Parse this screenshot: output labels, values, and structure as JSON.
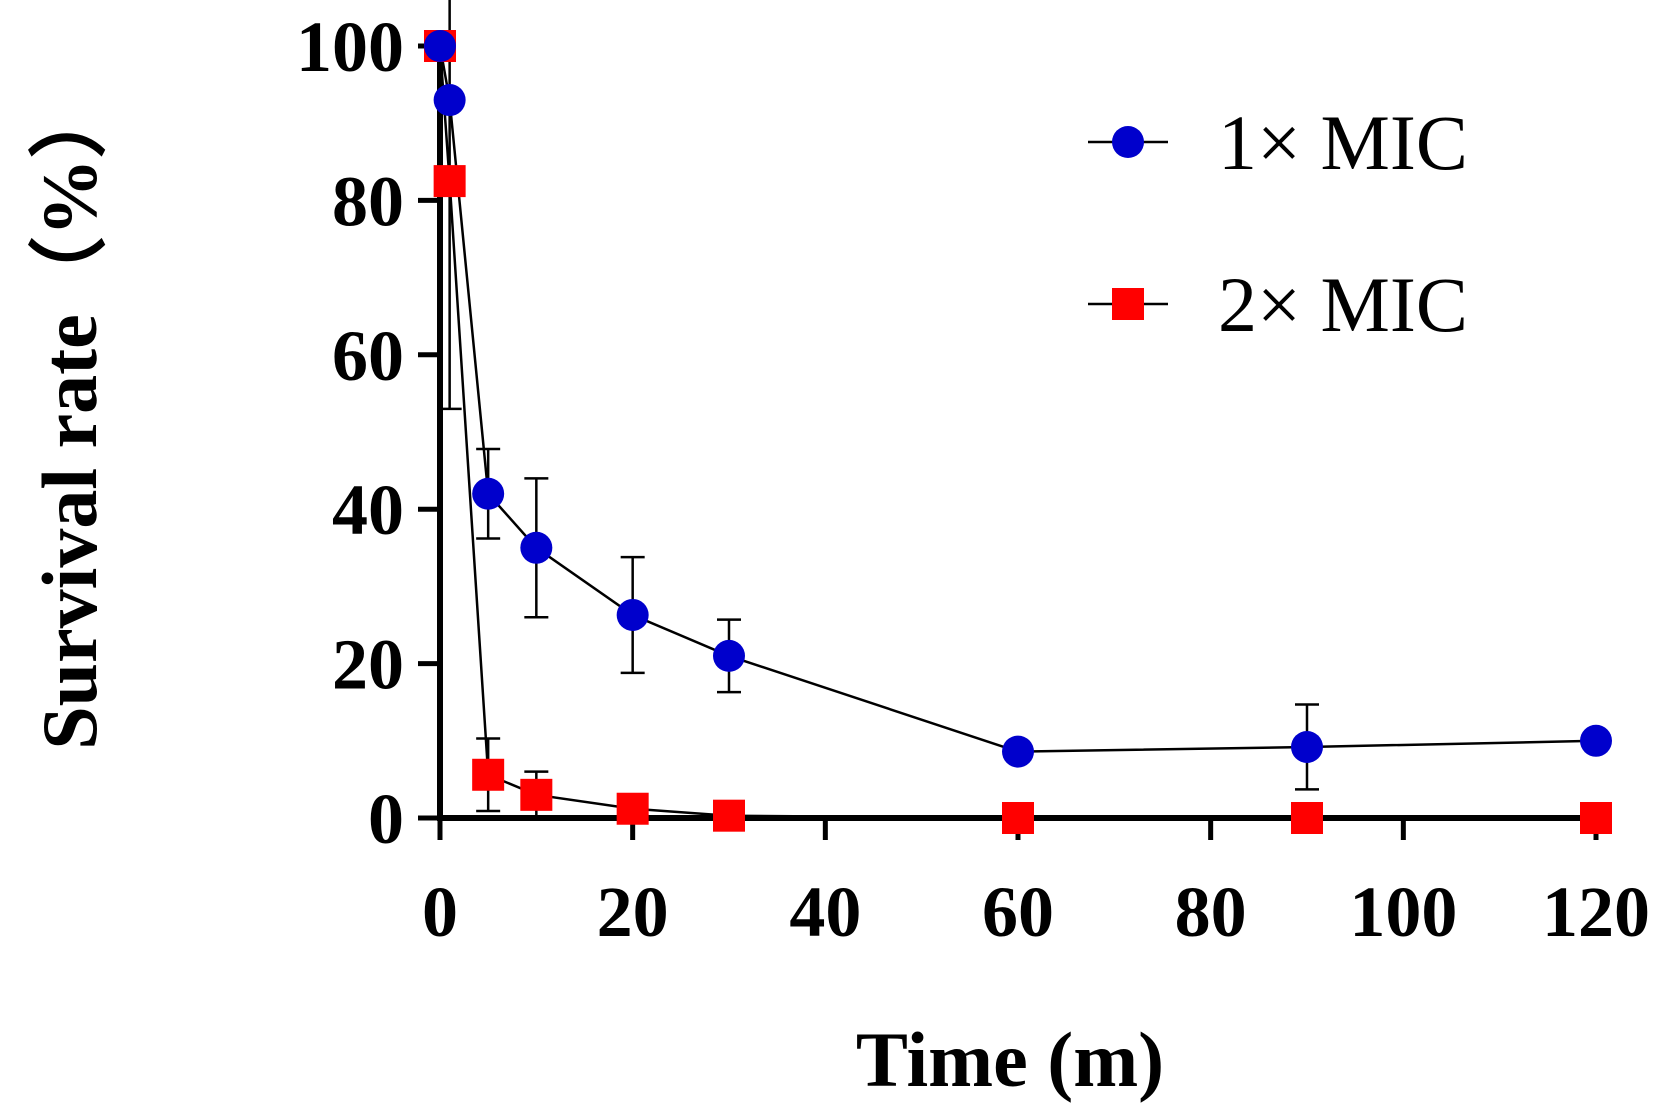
{
  "chart_data": {
    "type": "line",
    "title": "",
    "xlabel": "Time (m)",
    "ylabel": "Survival rate（%）",
    "xlim": [
      0,
      120
    ],
    "ylim": [
      0,
      100
    ],
    "xticks": [
      0,
      20,
      40,
      60,
      80,
      100,
      120
    ],
    "yticks": [
      0,
      20,
      40,
      60,
      80,
      100
    ],
    "xtick_labels": [
      "0",
      "20",
      "40",
      "60",
      "80",
      "100",
      "120"
    ],
    "ytick_labels": [
      "0",
      "20",
      "40",
      "60",
      "80",
      "100"
    ],
    "legend_position": "top-right",
    "series": [
      {
        "name": "1× MIC",
        "marker": "circle",
        "color": "#0000cc",
        "x": [
          0,
          1,
          5,
          10,
          20,
          30,
          60,
          90,
          120
        ],
        "y": [
          100,
          93,
          42,
          35,
          26.3,
          21,
          8.6,
          9.2,
          10
        ],
        "err": [
          0,
          40,
          5.8,
          9,
          7.5,
          4.7,
          0,
          5.5,
          0
        ]
      },
      {
        "name": "2× MIC",
        "marker": "square",
        "color": "#ff0000",
        "x": [
          0,
          1,
          5,
          10,
          20,
          30,
          60,
          90,
          120
        ],
        "y": [
          100,
          82.5,
          5.6,
          3,
          1.2,
          0.3,
          0,
          0,
          0
        ],
        "err": [
          0,
          0,
          4.7,
          3,
          0,
          0,
          0,
          0,
          0
        ]
      }
    ]
  }
}
